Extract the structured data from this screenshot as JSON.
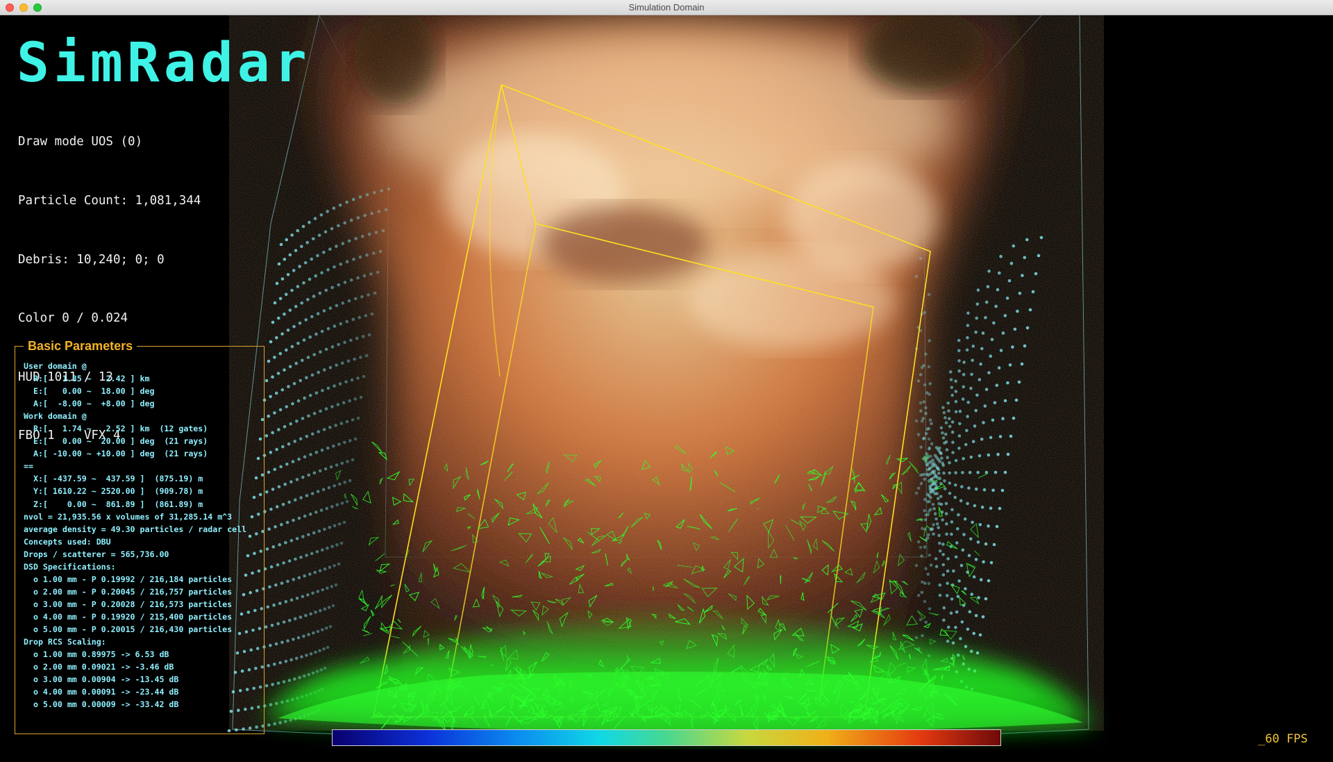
{
  "window": {
    "title": "Simulation Domain"
  },
  "hud": {
    "logo": "SimRadar",
    "stats": [
      "Draw mode UOS (0)",
      "Particle Count: 1,081,344",
      "Debris: 10,240; 0; 0",
      "Color 0 / 0.024",
      "HUD 1011 / 13",
      "FBO 1    VFX 4"
    ]
  },
  "panel": {
    "title": "Basic Parameters",
    "lines": [
      "User domain @",
      "  R:[   1.85 ~   2.42 ] km",
      "  E:[   0.00 ~  18.00 ] deg",
      "  A:[  -8.00 ~  +8.00 ] deg",
      "Work domain @",
      "  R:[   1.74 ~   2.52 ] km  (12 gates)",
      "  E:[   0.00 ~  20.00 ] deg  (21 rays)",
      "  A:[ -10.00 ~ +10.00 ] deg  (21 rays)",
      "==",
      "  X:[ -437.59 ~  437.59 ]  (875.19) m",
      "  Y:[ 1610.22 ~ 2520.00 ]  (909.78) m",
      "  Z:[    0.00 ~  861.89 ]  (861.89) m",
      "nvol = 21,935.56 x volumes of 31,285.14 m^3",
      "average density = 49.30 particles / radar cell",
      "Concepts used: DBU",
      "Drops / scatterer = 565,736.00",
      "DSD Specifications:",
      "  o 1.00 mm - P 0.19992 / 216,184 particles",
      "  o 2.00 mm - P 0.20045 / 216,757 particles",
      "  o 3.00 mm - P 0.20028 / 216,573 particles",
      "  o 4.00 mm - P 0.19920 / 215,400 particles",
      "  o 5.00 mm - P 0.20015 / 216,430 particles",
      "Drop RCS Scaling:",
      "  o 1.00 mm 0.89975 -> 6.53 dB",
      "  o 2.00 mm 0.09021 -> -3.46 dB",
      "  o 3.00 mm 0.00904 -> -13.45 dB",
      "  o 4.00 mm 0.00091 -> -23.44 dB",
      "  o 5.00 mm 0.00009 -> -33.42 dB"
    ]
  },
  "status": {
    "fps": "_60 FPS"
  },
  "colors": {
    "accent_cyan": "#3ff2e6",
    "panel_border": "#e0a42a",
    "panel_text": "#8ff0ff",
    "debris_green": "#22ff22",
    "frame_yellow": "#ffe020"
  },
  "colorbar": {
    "stops": [
      "#0a006e",
      "#0b30d8",
      "#0b8ef0",
      "#10d8e6",
      "#48d890",
      "#c8d840",
      "#f0b018",
      "#e43a10",
      "#6e0a0a"
    ]
  }
}
